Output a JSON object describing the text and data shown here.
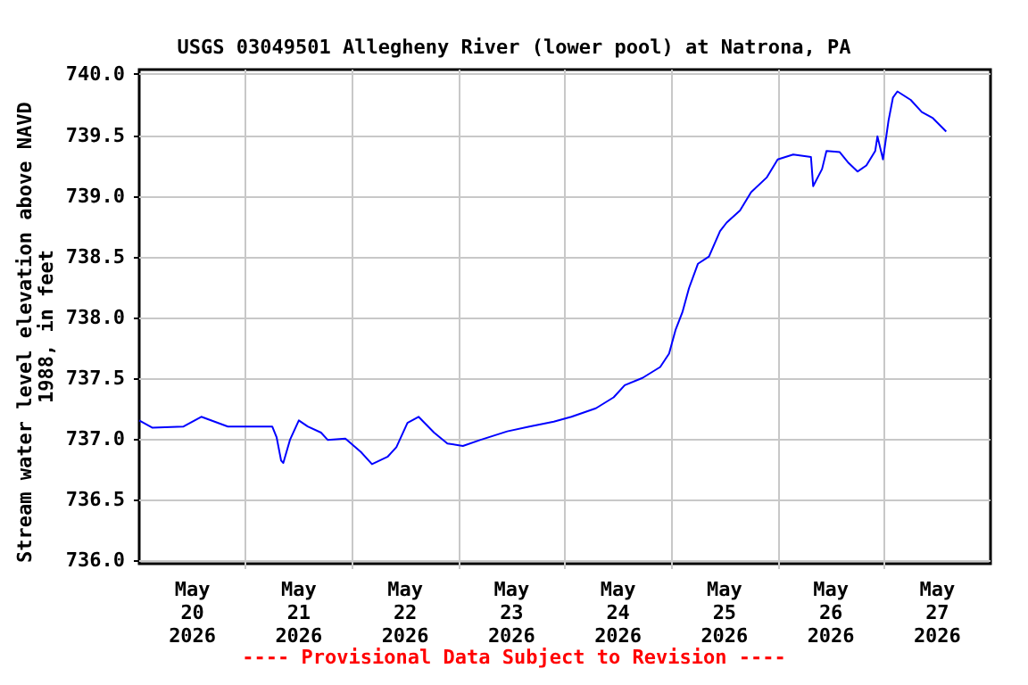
{
  "chart_data": {
    "type": "line",
    "title": "USGS 03049501 Allegheny River (lower pool) at Natrona, PA",
    "ylabel": "Stream water level elevation above NAVD 1988, in feet",
    "annotations": [
      "---- Provisional Data Subject to Revision ----"
    ],
    "x": [
      "2026-05-20T00:00",
      "2026-05-20T03:00",
      "2026-05-20T10:00",
      "2026-05-20T14:00",
      "2026-05-20T20:00",
      "2026-05-21T06:00",
      "2026-05-21T07:00",
      "2026-05-21T08:00",
      "2026-05-21T08:30",
      "2026-05-21T10:00",
      "2026-05-21T12:00",
      "2026-05-21T14:00",
      "2026-05-21T17:00",
      "2026-05-21T18:30",
      "2026-05-21T22:30",
      "2026-05-22T02:00",
      "2026-05-22T04:30",
      "2026-05-22T08:00",
      "2026-05-22T10:00",
      "2026-05-22T12:30",
      "2026-05-22T15:00",
      "2026-05-22T18:30",
      "2026-05-22T21:30",
      "2026-05-23T01:00",
      "2026-05-23T05:00",
      "2026-05-23T11:00",
      "2026-05-23T16:00",
      "2026-05-23T21:30",
      "2026-05-24T01:30",
      "2026-05-24T07:00",
      "2026-05-24T11:00",
      "2026-05-24T13:30",
      "2026-05-24T17:30",
      "2026-05-24T21:30",
      "2026-05-24T23:30",
      "2026-05-25T01:00",
      "2026-05-25T02:30",
      "2026-05-25T04:00",
      "2026-05-25T06:00",
      "2026-05-25T08:30",
      "2026-05-25T11:00",
      "2026-05-25T12:30",
      "2026-05-25T15:30",
      "2026-05-25T18:00",
      "2026-05-25T21:30",
      "2026-05-26T00:00",
      "2026-05-26T03:30",
      "2026-05-26T07:30",
      "2026-05-26T08:00",
      "2026-05-26T10:00",
      "2026-05-26T11:00",
      "2026-05-26T14:00",
      "2026-05-26T16:00",
      "2026-05-26T18:00",
      "2026-05-26T20:00",
      "2026-05-26T22:00",
      "2026-05-26T22:30",
      "2026-05-26T23:45",
      "2026-05-27T01:00",
      "2026-05-27T02:00",
      "2026-05-27T03:00",
      "2026-05-27T06:00",
      "2026-05-27T08:30",
      "2026-05-27T11:00",
      "2026-05-27T14:00"
    ],
    "series": [
      {
        "color": "#0000ff",
        "values": [
          737.15,
          737.09,
          737.1,
          737.18,
          737.1,
          737.1,
          737.01,
          736.82,
          736.8,
          736.99,
          737.15,
          737.1,
          737.05,
          736.99,
          737.0,
          736.89,
          736.79,
          736.85,
          736.93,
          737.13,
          737.18,
          737.05,
          736.96,
          736.94,
          736.99,
          737.06,
          737.1,
          737.14,
          737.18,
          737.25,
          737.34,
          737.44,
          737.5,
          737.59,
          737.7,
          737.9,
          738.04,
          738.24,
          738.44,
          738.5,
          738.71,
          738.78,
          738.88,
          739.03,
          739.15,
          739.3,
          739.34,
          739.32,
          739.08,
          739.22,
          739.37,
          739.36,
          739.27,
          739.2,
          739.25,
          739.37,
          739.49,
          739.3,
          739.62,
          739.81,
          739.86,
          739.79,
          739.69,
          739.64,
          739.53
        ]
      }
    ],
    "xlim": [
      "2026-05-20",
      "2026-05-28"
    ],
    "xticks": [
      {
        "value": "2026-05-20T12:00",
        "label": "May\n20\n2026"
      },
      {
        "value": "2026-05-21T12:00",
        "label": "May\n21\n2026"
      },
      {
        "value": "2026-05-22T12:00",
        "label": "May\n22\n2026"
      },
      {
        "value": "2026-05-23T12:00",
        "label": "May\n23\n2026"
      },
      {
        "value": "2026-05-24T12:00",
        "label": "May\n24\n2026"
      },
      {
        "value": "2026-05-25T12:00",
        "label": "May\n25\n2026"
      },
      {
        "value": "2026-05-26T12:00",
        "label": "May\n26\n2026"
      },
      {
        "value": "2026-05-27T12:00",
        "label": "May\n27\n2026"
      },
      {
        "value": "2026-05-21",
        "label": null
      },
      {
        "value": "2026-05-22",
        "label": null
      },
      {
        "value": "2026-05-23",
        "label": null
      },
      {
        "value": "2026-05-24",
        "label": null
      },
      {
        "value": "2026-05-25",
        "label": null
      },
      {
        "value": "2026-05-26",
        "label": null
      },
      {
        "value": "2026-05-27",
        "label": null
      }
    ],
    "ylim": [
      735.97,
      740.04
    ],
    "yticks": [
      {
        "value": 736,
        "label": "736.0"
      },
      {
        "value": 736.5,
        "label": "736.5"
      },
      {
        "value": 737,
        "label": "737.0"
      },
      {
        "value": 737.5,
        "label": "737.5"
      },
      {
        "value": 738,
        "label": "738.0"
      },
      {
        "value": 738.5,
        "label": "738.5"
      },
      {
        "value": 739,
        "label": "739.0"
      },
      {
        "value": 739.5,
        "label": "739.5"
      },
      {
        "value": 740,
        "label": "740.0"
      }
    ],
    "grid": true,
    "marker": "none",
    "line_style": "solid"
  }
}
